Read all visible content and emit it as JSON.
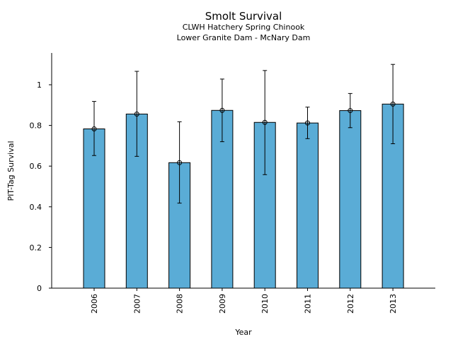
{
  "chart_data": {
    "type": "bar",
    "title": "Smolt Survival",
    "subtitle_lines": [
      "CLWH Hatchery Spring Chinook",
      "Lower Granite Dam - McNary Dam"
    ],
    "xlabel": "Year",
    "ylabel": "PIT-Tag Survival",
    "categories": [
      "2006",
      "2007",
      "2008",
      "2009",
      "2010",
      "2011",
      "2012",
      "2013"
    ],
    "values": [
      0.783,
      0.856,
      0.617,
      0.874,
      0.815,
      0.812,
      0.873,
      0.905
    ],
    "error_lower": [
      0.652,
      0.648,
      0.418,
      0.72,
      0.558,
      0.735,
      0.789,
      0.71
    ],
    "error_upper": [
      0.918,
      1.066,
      0.818,
      1.028,
      1.07,
      0.89,
      0.957,
      1.1
    ],
    "ylim": [
      0,
      1.15
    ],
    "yticks": [
      "0",
      "0.2",
      "0.4",
      "0.6",
      "0.8",
      "1"
    ],
    "ytick_values": [
      0,
      0.2,
      0.4,
      0.6,
      0.8,
      1.0
    ],
    "bar_color": "#5aacd6",
    "grid": false,
    "legend": "none"
  }
}
